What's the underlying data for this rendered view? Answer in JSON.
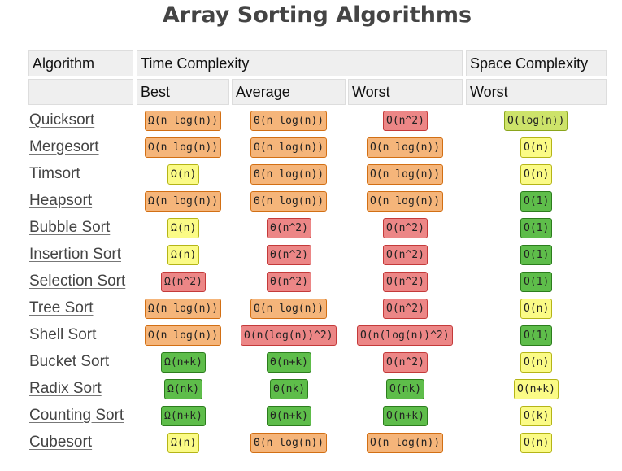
{
  "title": "Array Sorting Algorithms",
  "headers": {
    "algorithm": "Algorithm",
    "time_complexity": "Time Complexity",
    "space_complexity": "Space Complexity",
    "best": "Best",
    "average": "Average",
    "worst": "Worst",
    "space_worst": "Worst"
  },
  "colors": {
    "orange": "#f5b57a",
    "red": "#ec8686",
    "yellow": "#fbfb86",
    "green": "#5ebd4a",
    "lime": "#cde36a"
  },
  "rows": [
    {
      "name": "Quicksort",
      "best": "Ω(n log(n))",
      "best_c": "orange",
      "avg": "Θ(n log(n))",
      "avg_c": "orange",
      "worst": "O(n^2)",
      "worst_c": "red",
      "space": "O(log(n))",
      "space_c": "lime"
    },
    {
      "name": "Mergesort",
      "best": "Ω(n log(n))",
      "best_c": "orange",
      "avg": "Θ(n log(n))",
      "avg_c": "orange",
      "worst": "O(n log(n))",
      "worst_c": "orange",
      "space": "O(n)",
      "space_c": "yellow"
    },
    {
      "name": "Timsort",
      "best": "Ω(n)",
      "best_c": "yellow",
      "avg": "Θ(n log(n))",
      "avg_c": "orange",
      "worst": "O(n log(n))",
      "worst_c": "orange",
      "space": "O(n)",
      "space_c": "yellow"
    },
    {
      "name": "Heapsort",
      "best": "Ω(n log(n))",
      "best_c": "orange",
      "avg": "Θ(n log(n))",
      "avg_c": "orange",
      "worst": "O(n log(n))",
      "worst_c": "orange",
      "space": "O(1)",
      "space_c": "green"
    },
    {
      "name": "Bubble Sort",
      "best": "Ω(n)",
      "best_c": "yellow",
      "avg": "Θ(n^2)",
      "avg_c": "red",
      "worst": "O(n^2)",
      "worst_c": "red",
      "space": "O(1)",
      "space_c": "green"
    },
    {
      "name": "Insertion Sort",
      "best": "Ω(n)",
      "best_c": "yellow",
      "avg": "Θ(n^2)",
      "avg_c": "red",
      "worst": "O(n^2)",
      "worst_c": "red",
      "space": "O(1)",
      "space_c": "green"
    },
    {
      "name": "Selection Sort",
      "best": "Ω(n^2)",
      "best_c": "red",
      "avg": "Θ(n^2)",
      "avg_c": "red",
      "worst": "O(n^2)",
      "worst_c": "red",
      "space": "O(1)",
      "space_c": "green"
    },
    {
      "name": "Tree Sort",
      "best": "Ω(n log(n))",
      "best_c": "orange",
      "avg": "Θ(n log(n))",
      "avg_c": "orange",
      "worst": "O(n^2)",
      "worst_c": "red",
      "space": "O(n)",
      "space_c": "yellow"
    },
    {
      "name": "Shell Sort",
      "best": "Ω(n log(n))",
      "best_c": "orange",
      "avg": "Θ(n(log(n))^2)",
      "avg_c": "red",
      "worst": "O(n(log(n))^2)",
      "worst_c": "red",
      "space": "O(1)",
      "space_c": "green"
    },
    {
      "name": "Bucket Sort",
      "best": "Ω(n+k)",
      "best_c": "green",
      "avg": "Θ(n+k)",
      "avg_c": "green",
      "worst": "O(n^2)",
      "worst_c": "red",
      "space": "O(n)",
      "space_c": "yellow"
    },
    {
      "name": "Radix Sort",
      "best": "Ω(nk)",
      "best_c": "green",
      "avg": "Θ(nk)",
      "avg_c": "green",
      "worst": "O(nk)",
      "worst_c": "green",
      "space": "O(n+k)",
      "space_c": "yellow"
    },
    {
      "name": "Counting Sort",
      "best": "Ω(n+k)",
      "best_c": "green",
      "avg": "Θ(n+k)",
      "avg_c": "green",
      "worst": "O(n+k)",
      "worst_c": "green",
      "space": "O(k)",
      "space_c": "yellow"
    },
    {
      "name": "Cubesort",
      "best": "Ω(n)",
      "best_c": "yellow",
      "avg": "Θ(n log(n))",
      "avg_c": "orange",
      "worst": "O(n log(n))",
      "worst_c": "orange",
      "space": "O(n)",
      "space_c": "yellow"
    }
  ]
}
